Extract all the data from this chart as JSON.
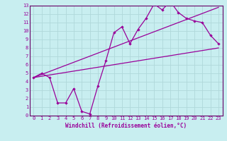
{
  "title": "",
  "xlabel": "Windchill (Refroidissement éolien,°C)",
  "bg_color": "#c8eef0",
  "grid_color": "#b0d8da",
  "line_color": "#990099",
  "spine_color": "#660066",
  "xlim": [
    -0.5,
    23.5
  ],
  "ylim": [
    0,
    13
  ],
  "xticks": [
    0,
    1,
    2,
    3,
    4,
    5,
    6,
    7,
    8,
    9,
    10,
    11,
    12,
    13,
    14,
    15,
    16,
    17,
    18,
    19,
    20,
    21,
    22,
    23
  ],
  "yticks": [
    0,
    1,
    2,
    3,
    4,
    5,
    6,
    7,
    8,
    9,
    10,
    11,
    12,
    13
  ],
  "series1_x": [
    0,
    1,
    2,
    3,
    4,
    5,
    6,
    7,
    8,
    9,
    10,
    11,
    12,
    13,
    14,
    15,
    16,
    17,
    18,
    19,
    20,
    21,
    22,
    23
  ],
  "series1_y": [
    4.5,
    5.0,
    4.5,
    1.5,
    1.5,
    3.2,
    0.5,
    0.2,
    3.5,
    6.5,
    9.8,
    10.5,
    8.5,
    10.2,
    11.5,
    13.2,
    12.5,
    13.5,
    12.2,
    11.5,
    11.2,
    11.0,
    9.5,
    8.5
  ],
  "series2_x": [
    0,
    23
  ],
  "series2_y": [
    4.5,
    8.0
  ],
  "series3_x": [
    0,
    23
  ],
  "series3_y": [
    4.5,
    12.8
  ],
  "xlabel_fontsize": 5.5,
  "tick_fontsize": 5.0,
  "linewidth": 0.9,
  "markersize": 2.2
}
